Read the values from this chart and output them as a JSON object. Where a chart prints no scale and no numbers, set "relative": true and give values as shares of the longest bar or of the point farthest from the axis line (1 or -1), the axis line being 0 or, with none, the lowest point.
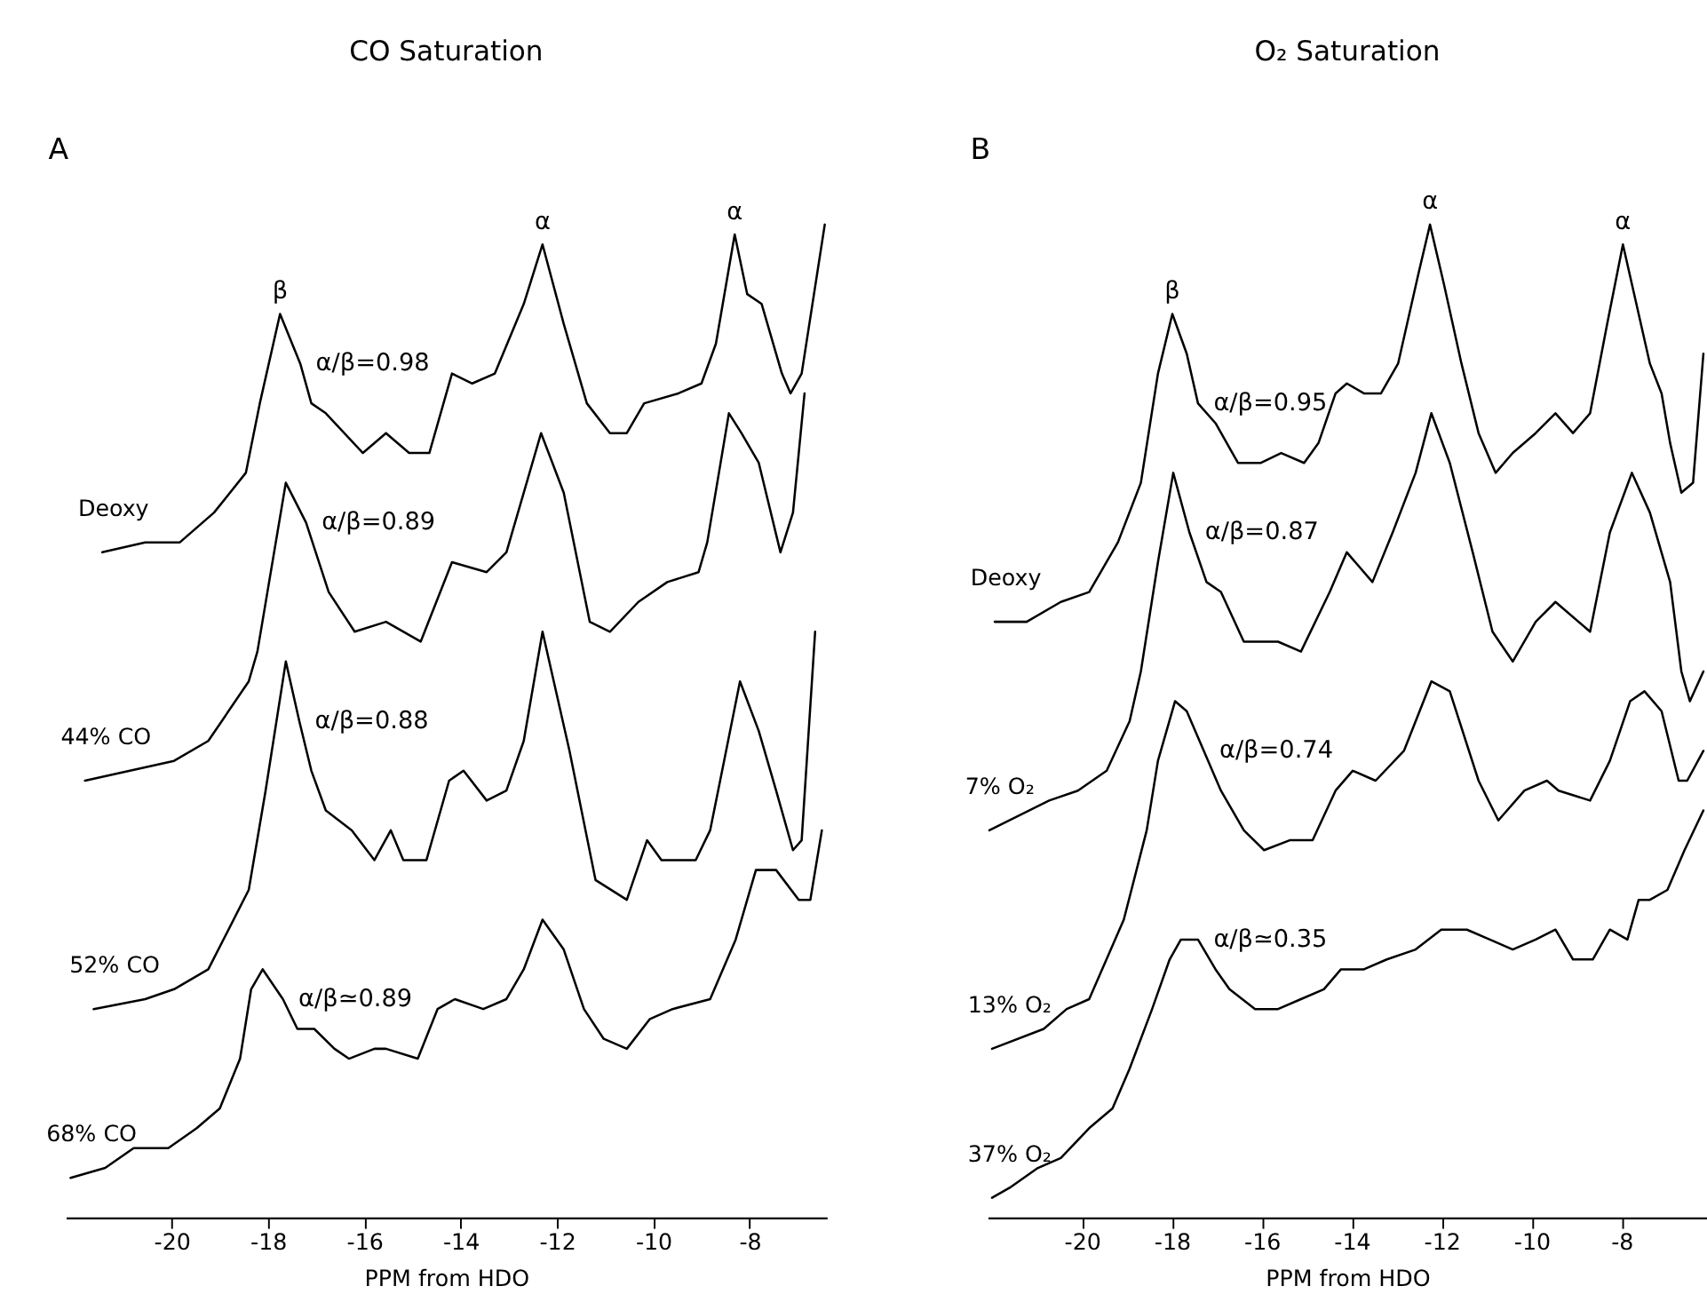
{
  "chart_data": [
    {
      "type": "line",
      "title": "CO Saturation",
      "xlabel": "PPM from HDO",
      "relative": true,
      "line_style": "solid",
      "xlim": [
        -22.2,
        -6.4
      ],
      "xticks": [
        -20,
        -18,
        -16,
        -14,
        -12,
        -10,
        -8
      ],
      "series": [
        {
          "name": "Deoxy",
          "color": "#000000",
          "x": [
            -21.44,
            -20.55,
            -19.83,
            -19.12,
            -18.46,
            -18.17,
            -17.75,
            -17.33,
            -17.1,
            -16.8,
            -16.03,
            -15.55,
            -15.07,
            -14.65,
            -14.18,
            -13.76,
            -13.29,
            -12.69,
            -12.3,
            -11.86,
            -11.38,
            -10.9,
            -10.55,
            -10.19,
            -9.48,
            -9.0,
            -8.7,
            -8.31,
            -8.05,
            -7.75,
            -7.33,
            -7.15,
            -6.92,
            -6.44
          ],
          "values": [
            0.67,
            0.68,
            0.68,
            0.71,
            0.75,
            0.82,
            0.91,
            0.86,
            0.82,
            0.81,
            0.77,
            0.79,
            0.77,
            0.77,
            0.85,
            0.84,
            0.85,
            0.92,
            0.98,
            0.9,
            0.82,
            0.79,
            0.79,
            0.82,
            0.83,
            0.84,
            0.88,
            0.99,
            0.93,
            0.92,
            0.85,
            0.83,
            0.85,
            1.0
          ]
        },
        {
          "name": "44% CO",
          "color": "#000000",
          "x": [
            -21.8,
            -19.95,
            -19.24,
            -18.4,
            -18.22,
            -17.63,
            -17.21,
            -16.74,
            -16.2,
            -15.55,
            -14.83,
            -14.18,
            -13.46,
            -13.05,
            -12.33,
            -11.86,
            -11.32,
            -10.9,
            -10.31,
            -9.71,
            -9.06,
            -8.88,
            -8.43,
            -8.17,
            -7.81,
            -7.36,
            -7.1,
            -6.86
          ],
          "values": [
            0.44,
            0.46,
            0.48,
            0.54,
            0.57,
            0.74,
            0.7,
            0.63,
            0.59,
            0.6,
            0.58,
            0.66,
            0.65,
            0.67,
            0.79,
            0.73,
            0.6,
            0.59,
            0.62,
            0.64,
            0.65,
            0.68,
            0.81,
            0.79,
            0.76,
            0.67,
            0.71,
            0.83
          ]
        },
        {
          "name": "52% CO",
          "color": "#000000",
          "x": [
            -21.62,
            -20.55,
            -19.95,
            -19.24,
            -18.4,
            -18.05,
            -17.63,
            -17.35,
            -17.1,
            -16.8,
            -16.26,
            -15.79,
            -15.45,
            -15.19,
            -14.71,
            -14.24,
            -13.94,
            -13.46,
            -13.05,
            -12.69,
            -12.3,
            -11.74,
            -11.2,
            -10.55,
            -10.13,
            -9.83,
            -9.48,
            -9.12,
            -8.82,
            -8.53,
            -8.2,
            -7.81,
            -7.45,
            -7.1,
            -6.92,
            -6.64
          ],
          "values": [
            0.21,
            0.22,
            0.23,
            0.25,
            0.33,
            0.43,
            0.56,
            0.5,
            0.45,
            0.41,
            0.39,
            0.36,
            0.39,
            0.36,
            0.36,
            0.44,
            0.45,
            0.42,
            0.43,
            0.48,
            0.59,
            0.47,
            0.34,
            0.32,
            0.38,
            0.36,
            0.36,
            0.36,
            0.39,
            0.46,
            0.54,
            0.49,
            0.43,
            0.37,
            0.38,
            0.59
          ]
        },
        {
          "name": "68% CO",
          "color": "#000000",
          "x": [
            -22.1,
            -21.38,
            -20.79,
            -20.07,
            -19.48,
            -19.0,
            -18.58,
            -18.35,
            -18.11,
            -17.69,
            -17.39,
            -17.04,
            -16.62,
            -16.32,
            -15.79,
            -15.55,
            -14.89,
            -14.48,
            -14.12,
            -13.53,
            -13.05,
            -12.69,
            -12.3,
            -11.86,
            -11.44,
            -11.03,
            -10.55,
            -10.07,
            -9.6,
            -8.82,
            -8.29,
            -7.87,
            -7.45,
            -6.98,
            -6.74,
            -6.5
          ],
          "values": [
            0.04,
            0.05,
            0.07,
            0.07,
            0.09,
            0.11,
            0.16,
            0.23,
            0.25,
            0.22,
            0.19,
            0.19,
            0.17,
            0.16,
            0.17,
            0.17,
            0.16,
            0.21,
            0.22,
            0.21,
            0.22,
            0.25,
            0.3,
            0.27,
            0.21,
            0.18,
            0.17,
            0.2,
            0.21,
            0.22,
            0.28,
            0.35,
            0.35,
            0.32,
            0.32,
            0.39
          ]
        }
      ],
      "annotations": [
        "A",
        {
          "text": "β",
          "x": -17.75,
          "y": 0.91
        },
        {
          "text": "α",
          "x": -12.3,
          "y": 0.98
        },
        {
          "text": "α",
          "x": -8.31,
          "y": 0.99
        },
        {
          "text": "α/β=0.98",
          "x": -17.33,
          "y": 0.86
        },
        {
          "text": "α/β=0.89",
          "x": -17.21,
          "y": 0.7
        },
        {
          "text": "α/β=0.88",
          "x": -17.35,
          "y": 0.5
        },
        {
          "text": "α/β≃0.89",
          "x": -17.69,
          "y": 0.22
        }
      ]
    },
    {
      "type": "line",
      "title": "O₂ Saturation",
      "xlabel": "PPM from HDO",
      "relative": true,
      "line_style": "solid",
      "xlim": [
        -22.1,
        -6.1
      ],
      "xticks": [
        -20,
        -18,
        -16,
        -14,
        -12,
        -10,
        -8
      ],
      "series": [
        {
          "name": "Deoxy",
          "color": "#000000",
          "x": [
            -21.94,
            -21.23,
            -20.47,
            -19.84,
            -19.2,
            -18.69,
            -18.31,
            -17.99,
            -17.67,
            -17.42,
            -17.03,
            -16.53,
            -16.02,
            -15.57,
            -15.06,
            -14.74,
            -14.36,
            -14.11,
            -13.73,
            -13.35,
            -12.97,
            -12.52,
            -12.26,
            -11.95,
            -11.56,
            -11.18,
            -10.8,
            -10.42,
            -9.91,
            -9.47,
            -9.08,
            -8.7,
            -8.32,
            -7.97,
            -7.62,
            -7.37,
            -7.11,
            -6.92,
            -6.67,
            -6.41,
            -6.18
          ],
          "values": [
            0.6,
            0.6,
            0.62,
            0.63,
            0.68,
            0.74,
            0.85,
            0.91,
            0.87,
            0.82,
            0.8,
            0.76,
            0.76,
            0.77,
            0.76,
            0.78,
            0.83,
            0.84,
            0.83,
            0.83,
            0.86,
            0.95,
            1.0,
            0.94,
            0.86,
            0.79,
            0.75,
            0.77,
            0.79,
            0.81,
            0.79,
            0.81,
            0.9,
            0.98,
            0.91,
            0.86,
            0.83,
            0.78,
            0.73,
            0.74,
            0.87
          ]
        },
        {
          "name": "7% O₂",
          "color": "#000000",
          "x": [
            -22.06,
            -20.73,
            -20.09,
            -19.45,
            -18.94,
            -18.69,
            -18.31,
            -17.97,
            -17.61,
            -17.23,
            -16.91,
            -16.4,
            -15.64,
            -15.13,
            -14.49,
            -14.11,
            -13.54,
            -13.09,
            -12.58,
            -12.23,
            -11.82,
            -11.31,
            -10.87,
            -10.42,
            -9.91,
            -9.47,
            -8.7,
            -8.26,
            -7.77,
            -7.37,
            -6.92,
            -6.67,
            -6.48,
            -6.18
          ],
          "values": [
            0.39,
            0.42,
            0.43,
            0.45,
            0.5,
            0.55,
            0.66,
            0.75,
            0.69,
            0.64,
            0.63,
            0.58,
            0.58,
            0.57,
            0.63,
            0.67,
            0.64,
            0.69,
            0.75,
            0.81,
            0.76,
            0.67,
            0.59,
            0.56,
            0.6,
            0.62,
            0.59,
            0.69,
            0.75,
            0.71,
            0.64,
            0.55,
            0.52,
            0.55
          ]
        },
        {
          "name": "13% O₂",
          "color": "#000000",
          "x": [
            -22.0,
            -20.85,
            -20.34,
            -19.84,
            -19.07,
            -18.56,
            -18.31,
            -17.93,
            -17.67,
            -17.29,
            -16.91,
            -16.4,
            -15.95,
            -15.38,
            -14.87,
            -14.36,
            -13.98,
            -13.47,
            -12.84,
            -12.23,
            -11.82,
            -11.18,
            -10.74,
            -10.16,
            -9.66,
            -9.4,
            -8.7,
            -8.26,
            -7.81,
            -7.49,
            -7.11,
            -6.73,
            -6.54,
            -6.18
          ],
          "values": [
            0.17,
            0.19,
            0.21,
            0.22,
            0.3,
            0.39,
            0.46,
            0.52,
            0.51,
            0.47,
            0.43,
            0.39,
            0.37,
            0.38,
            0.38,
            0.43,
            0.45,
            0.44,
            0.47,
            0.54,
            0.53,
            0.44,
            0.4,
            0.43,
            0.44,
            0.43,
            0.42,
            0.46,
            0.52,
            0.53,
            0.51,
            0.44,
            0.44,
            0.47
          ]
        },
        {
          "name": "37% O₂",
          "color": "#000000",
          "x": [
            -22.0,
            -21.61,
            -20.98,
            -20.47,
            -19.84,
            -19.32,
            -18.94,
            -18.44,
            -18.05,
            -17.8,
            -17.42,
            -17.03,
            -16.72,
            -16.15,
            -15.64,
            -15.13,
            -14.62,
            -14.24,
            -13.73,
            -13.22,
            -12.58,
            -12.01,
            -11.44,
            -10.93,
            -10.42,
            -9.91,
            -9.47,
            -9.08,
            -8.64,
            -8.26,
            -7.87,
            -7.62,
            -7.37,
            -6.98,
            -6.6,
            -6.18
          ],
          "values": [
            0.02,
            0.03,
            0.05,
            0.06,
            0.09,
            0.11,
            0.15,
            0.21,
            0.26,
            0.28,
            0.28,
            0.25,
            0.23,
            0.21,
            0.21,
            0.22,
            0.23,
            0.25,
            0.25,
            0.26,
            0.27,
            0.29,
            0.29,
            0.28,
            0.27,
            0.28,
            0.29,
            0.26,
            0.26,
            0.29,
            0.28,
            0.32,
            0.32,
            0.33,
            0.37,
            0.41
          ]
        }
      ],
      "annotations": [
        "B",
        {
          "text": "β",
          "x": -17.99,
          "y": 0.91
        },
        {
          "text": "α",
          "x": -12.26,
          "y": 1.0
        },
        {
          "text": "α",
          "x": -7.97,
          "y": 0.98
        },
        {
          "text": "α/β=0.95",
          "x": -17.42,
          "y": 0.82
        },
        {
          "text": "α/β=0.87",
          "x": -17.61,
          "y": 0.69
        },
        {
          "text": "α/β=0.74",
          "x": -17.29,
          "y": 0.47
        },
        {
          "text": "α/β≃0.35",
          "x": -17.42,
          "y": 0.28
        }
      ]
    }
  ]
}
